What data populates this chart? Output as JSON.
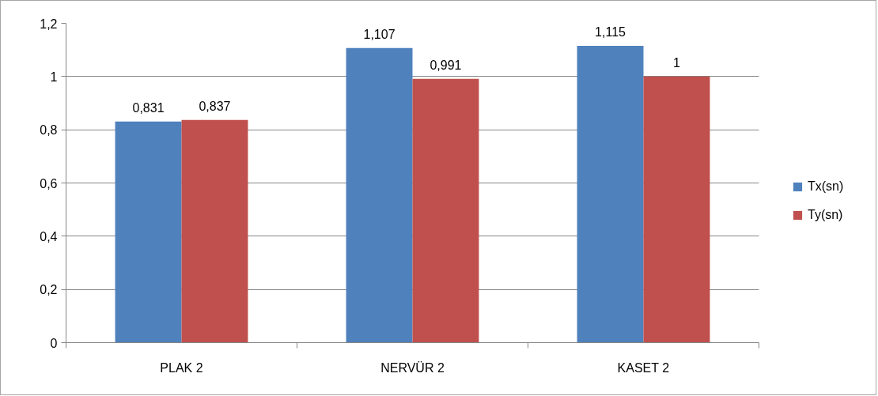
{
  "chart_data": {
    "type": "bar",
    "categories": [
      "PLAK 2",
      "NERVÜR 2",
      "KASET 2"
    ],
    "series": [
      {
        "name": "Tx(sn)",
        "color": "#4f81bd",
        "values": [
          0.831,
          1.107,
          1.115
        ],
        "value_labels": [
          "0,831",
          "1,107",
          "1,115"
        ]
      },
      {
        "name": "Ty(sn)",
        "color": "#c0504d",
        "values": [
          0.837,
          0.991,
          1
        ],
        "value_labels": [
          "0,837",
          "0,991",
          "1"
        ]
      }
    ],
    "ylim": [
      0,
      1.2
    ],
    "yticks": [
      0,
      {
        "value": 0.2,
        "label": "0,2"
      },
      {
        "value": 0.4,
        "label": "0,4"
      },
      {
        "value": 0.6,
        "label": "0,6"
      },
      {
        "value": 0.8,
        "label": "0,8"
      },
      1,
      {
        "value": 1.2,
        "label": "1,2"
      }
    ],
    "grid": "y",
    "legend": "right"
  }
}
